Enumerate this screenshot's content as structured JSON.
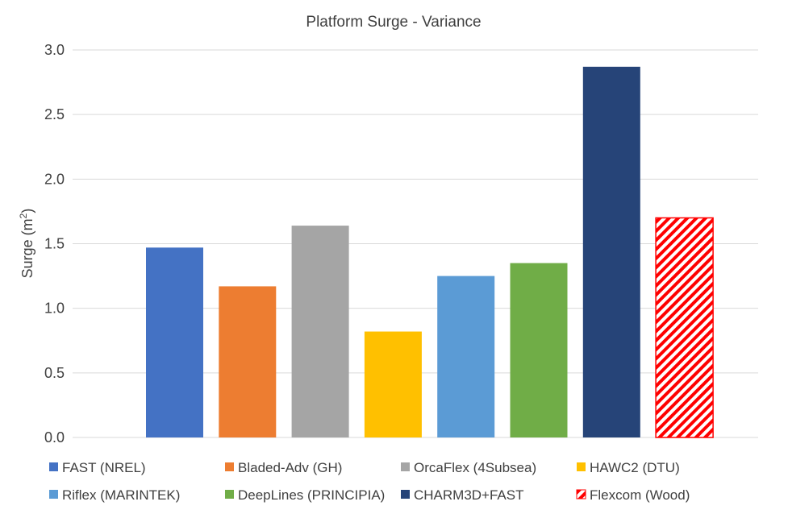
{
  "chart_data": {
    "type": "bar",
    "title": "Platform Surge - Variance",
    "ylabel": "Surge (m²)",
    "ylabel_base": "Surge (m",
    "ylabel_sup": "2",
    "ylabel_end": ")",
    "xlabel": "",
    "ylim": [
      0,
      3.0
    ],
    "yticks": [
      "0.0",
      "0.5",
      "1.0",
      "1.5",
      "2.0",
      "2.5",
      "3.0"
    ],
    "grid": true,
    "legend_position": "bottom",
    "series": [
      {
        "name": "FAST (NREL)",
        "value": 1.47,
        "color": "#4472c4",
        "pattern": "solid"
      },
      {
        "name": "Bladed-Adv (GH)",
        "value": 1.17,
        "color": "#ed7d31",
        "pattern": "solid"
      },
      {
        "name": "OrcaFlex (4Subsea)",
        "value": 1.64,
        "color": "#a5a5a5",
        "pattern": "solid"
      },
      {
        "name": "HAWC2 (DTU)",
        "value": 0.82,
        "color": "#ffc000",
        "pattern": "solid"
      },
      {
        "name": "Riflex (MARINTEK)",
        "value": 1.25,
        "color": "#5b9bd5",
        "pattern": "solid"
      },
      {
        "name": "DeepLines (PRINCIPIA)",
        "value": 1.35,
        "color": "#70ad47",
        "pattern": "solid"
      },
      {
        "name": "CHARM3D+FAST",
        "value": 2.87,
        "color": "#264478",
        "pattern": "solid"
      },
      {
        "name": "Flexcom (Wood)",
        "value": 1.7,
        "color": "#ff0000",
        "pattern": "hatch"
      }
    ]
  }
}
